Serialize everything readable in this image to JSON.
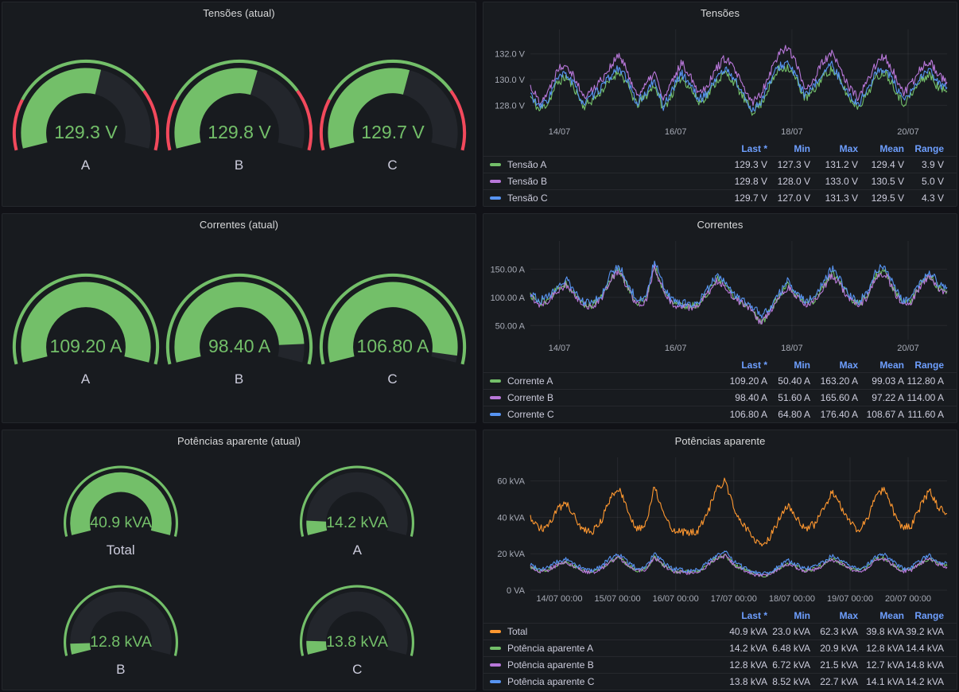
{
  "theme": {
    "page_bg": "#111217",
    "panel_bg": "#181b1f",
    "title_color": "#d8d9da",
    "text": "#ccccdc",
    "axis_text": "#a7abb6",
    "grid": "rgba(204,204,220,0.08)",
    "legend_header": "#6e9fff",
    "green": "#73BF69",
    "red": "#F2495C",
    "purple": "#B877D9",
    "blue": "#5794F2",
    "orange": "#FF9830",
    "gauge_track": "#23262c"
  },
  "panels": {
    "tensoes_atual": {
      "title": "Tensões (atual)",
      "layout": {
        "columns": 3,
        "size": 192,
        "value_font": 24
      },
      "gauges": [
        {
          "label": "A",
          "value": "129.3 V",
          "fill": 0.565,
          "ring": [
            {
              "to": 0.2,
              "color": "#F2495C"
            },
            {
              "to": 0.76,
              "color": "#73BF69"
            },
            {
              "to": 1,
              "color": "#F2495C"
            }
          ]
        },
        {
          "label": "B",
          "value": "129.8 V",
          "fill": 0.578,
          "ring": [
            {
              "to": 0.2,
              "color": "#F2495C"
            },
            {
              "to": 0.76,
              "color": "#73BF69"
            },
            {
              "to": 1,
              "color": "#F2495C"
            }
          ]
        },
        {
          "label": "C",
          "value": "129.7 V",
          "fill": 0.572,
          "ring": [
            {
              "to": 0.2,
              "color": "#F2495C"
            },
            {
              "to": 0.76,
              "color": "#73BF69"
            },
            {
              "to": 1,
              "color": "#F2495C"
            }
          ]
        }
      ]
    },
    "correntes_atual": {
      "title": "Correntes (atual)",
      "layout": {
        "columns": 3,
        "size": 192,
        "value_font": 24
      },
      "gauges": [
        {
          "label": "A",
          "value": "109.20 A",
          "fill": 1.0,
          "ring": [
            {
              "to": 1,
              "color": "#73BF69"
            }
          ]
        },
        {
          "label": "B",
          "value": "98.40 A",
          "fill": 0.92,
          "ring": [
            {
              "to": 1,
              "color": "#73BF69"
            }
          ]
        },
        {
          "label": "C",
          "value": "106.80 A",
          "fill": 0.97,
          "ring": [
            {
              "to": 1,
              "color": "#73BF69"
            }
          ]
        }
      ]
    },
    "potencias_atual": {
      "title": "Potências aparente (atual)",
      "layout": {
        "columns": 2,
        "size": 150,
        "value_font": 26
      },
      "gauges": [
        {
          "label": "Total",
          "value": "40.9 kVA",
          "fill": 1.0,
          "ring": [
            {
              "to": 1,
              "color": "#73BF69"
            }
          ]
        },
        {
          "label": "A",
          "value": "14.2 kVA",
          "fill": 0.08,
          "ring": [
            {
              "to": 1,
              "color": "#73BF69"
            }
          ]
        },
        {
          "label": "B",
          "value": "12.8 kVA",
          "fill": 0.06,
          "ring": [
            {
              "to": 1,
              "color": "#73BF69"
            }
          ]
        },
        {
          "label": "C",
          "value": "13.8 kVA",
          "fill": 0.075,
          "ring": [
            {
              "to": 1,
              "color": "#73BF69"
            }
          ]
        }
      ]
    },
    "tensoes": {
      "title": "Tensões",
      "chart": 0
    },
    "correntes": {
      "title": "Correntes",
      "chart": 1
    },
    "potencias": {
      "title": "Potências aparente",
      "chart": 2
    }
  },
  "chart_data": [
    {
      "type": "line",
      "title": "Tensões",
      "xlabel": "",
      "ylabel": "V",
      "x_range_days": [
        0,
        7.17
      ],
      "x_start": "13/07 ~12:00",
      "grid": true,
      "legend_position": "bottom-table",
      "ylim": [
        126.6,
        133.9
      ],
      "yticks": [
        {
          "v": 128,
          "label": "128.0 V"
        },
        {
          "v": 130,
          "label": "130.0 V"
        },
        {
          "v": 132,
          "label": "132.0 V"
        }
      ],
      "xticks": [
        {
          "x": 0.5,
          "label": "14/07"
        },
        {
          "x": 2.5,
          "label": "16/07"
        },
        {
          "x": 4.5,
          "label": "18/07"
        },
        {
          "x": 6.5,
          "label": "20/07"
        }
      ],
      "series": [
        {
          "name": "Tensão A",
          "color": "#73BF69",
          "noise": 0.35,
          "seed": 11,
          "values": [
            128.7,
            127.6,
            128.2,
            129.7,
            130.2,
            129.3,
            127.9,
            128.4,
            129.1,
            129.9,
            130.7,
            129.5,
            128,
            128.7,
            129.6,
            127.7,
            128.9,
            130.2,
            129.4,
            128.2,
            128.8,
            129.9,
            130.5,
            129.8,
            128.6,
            127.5,
            128.1,
            129.5,
            130.8,
            131,
            130,
            128.5,
            129.1,
            130.3,
            130.8,
            129.8,
            128.5,
            127.9,
            128.9,
            130.2,
            130.6,
            129.5,
            128.1,
            128.8,
            129.9,
            130.4,
            129.4,
            129.1
          ]
        },
        {
          "name": "Tensão B",
          "color": "#B877D9",
          "noise": 0.35,
          "seed": 22,
          "values": [
            129.5,
            128.3,
            129,
            130.8,
            131.3,
            130.2,
            128.6,
            129.2,
            130,
            131,
            131.9,
            130.5,
            128.8,
            129.5,
            130.6,
            128.4,
            129.8,
            131.3,
            130.4,
            129,
            129.6,
            130.9,
            131.7,
            130.8,
            129.4,
            128.2,
            128.9,
            130.5,
            132,
            132.6,
            131.2,
            129.3,
            130,
            131.4,
            132,
            130.8,
            129.3,
            128.6,
            129.8,
            131.3,
            131.8,
            130.5,
            128.9,
            129.6,
            130.9,
            131.5,
            130.4,
            129.8
          ]
        },
        {
          "name": "Tensão C",
          "color": "#5794F2",
          "noise": 0.35,
          "seed": 33,
          "values": [
            128.9,
            127.8,
            128.5,
            130,
            130.5,
            129.5,
            128.1,
            128.7,
            129.4,
            130.2,
            131,
            129.8,
            128.2,
            128.9,
            129.9,
            127.9,
            129.2,
            130.5,
            129.7,
            128.4,
            129,
            130.2,
            130.8,
            130.1,
            128.8,
            127.6,
            128.3,
            129.8,
            131,
            131.3,
            130.2,
            128.7,
            129.4,
            130.6,
            131.1,
            130,
            128.7,
            128.1,
            129.2,
            130.5,
            130.9,
            129.8,
            128.3,
            129,
            130.2,
            130.7,
            129.7,
            129.4
          ]
        }
      ],
      "legend": {
        "columns": [
          "Last *",
          "Min",
          "Max",
          "Mean",
          "Range"
        ],
        "rows": [
          {
            "name": "Tensão A",
            "color": "#73BF69",
            "values": [
              "129.3 V",
              "127.3 V",
              "131.2 V",
              "129.4 V",
              "3.9 V"
            ]
          },
          {
            "name": "Tensão B",
            "color": "#B877D9",
            "values": [
              "129.8 V",
              "128.0 V",
              "133.0 V",
              "130.5 V",
              "5.0 V"
            ]
          },
          {
            "name": "Tensão C",
            "color": "#5794F2",
            "values": [
              "129.7 V",
              "127.0 V",
              "131.3 V",
              "129.5 V",
              "4.3 V"
            ]
          }
        ]
      }
    },
    {
      "type": "line",
      "title": "Correntes",
      "xlabel": "",
      "ylabel": "A",
      "x_range_days": [
        0,
        7.17
      ],
      "x_start": "13/07 ~12:00",
      "grid": true,
      "legend_position": "bottom-table",
      "ylim": [
        25,
        200
      ],
      "yticks": [
        {
          "v": 50,
          "label": "50.00 A"
        },
        {
          "v": 100,
          "label": "100.00 A"
        },
        {
          "v": 150,
          "label": "150.00 A"
        }
      ],
      "xticks": [
        {
          "x": 0.5,
          "label": "14/07"
        },
        {
          "x": 2.5,
          "label": "16/07"
        },
        {
          "x": 4.5,
          "label": "18/07"
        },
        {
          "x": 6.5,
          "label": "20/07"
        }
      ],
      "series": [
        {
          "name": "Corrente A",
          "color": "#73BF69",
          "noise": 6.5,
          "seed": 44,
          "values": [
            104,
            90,
            96,
            114,
            125,
            104,
            88,
            86,
            100,
            132,
            150,
            118,
            90,
            95,
            155,
            113,
            90,
            86,
            84,
            88,
            109,
            133,
            123,
            100,
            90,
            80,
            52,
            76,
            100,
            121,
            104,
            90,
            95,
            118,
            144,
            123,
            99,
            87,
            104,
            140,
            147,
            113,
            90,
            95,
            123,
            140,
            118,
            112
          ]
        },
        {
          "name": "Corrente B",
          "color": "#B877D9",
          "noise": 6.5,
          "seed": 55,
          "values": [
            102,
            88,
            94,
            112,
            122,
            102,
            86,
            84,
            98,
            129,
            147,
            115,
            88,
            93,
            152,
            110,
            88,
            84,
            82,
            86,
            106,
            130,
            120,
            98,
            88,
            78,
            54,
            74,
            97,
            118,
            101,
            88,
            92,
            115,
            141,
            120,
            97,
            85,
            101,
            137,
            144,
            110,
            88,
            92,
            120,
            137,
            115,
            109
          ]
        },
        {
          "name": "Corrente C",
          "color": "#5794F2",
          "noise": 7,
          "seed": 66,
          "values": [
            110,
            95,
            100,
            120,
            132,
            110,
            92,
            90,
            105,
            140,
            158,
            125,
            95,
            100,
            165,
            120,
            95,
            90,
            88,
            92,
            115,
            140,
            130,
            105,
            95,
            85,
            68,
            80,
            105,
            128,
            110,
            95,
            100,
            125,
            152,
            130,
            105,
            92,
            110,
            148,
            155,
            120,
            95,
            100,
            130,
            148,
            125,
            118
          ]
        }
      ],
      "legend": {
        "columns": [
          "Last *",
          "Min",
          "Max",
          "Mean",
          "Range"
        ],
        "rows": [
          {
            "name": "Corrente A",
            "color": "#73BF69",
            "values": [
              "109.20 A",
              "50.40 A",
              "163.20 A",
              "99.03 A",
              "112.80 A"
            ]
          },
          {
            "name": "Corrente B",
            "color": "#B877D9",
            "values": [
              "98.40 A",
              "51.60 A",
              "165.60 A",
              "97.22 A",
              "114.00 A"
            ]
          },
          {
            "name": "Corrente C",
            "color": "#5794F2",
            "values": [
              "106.80 A",
              "64.80 A",
              "176.40 A",
              "108.67 A",
              "111.60 A"
            ]
          }
        ]
      }
    },
    {
      "type": "line",
      "title": "Potências aparente",
      "xlabel": "",
      "ylabel": "kVA",
      "x_range_days": [
        0,
        7.17
      ],
      "x_start": "13/07 ~12:00",
      "grid": true,
      "legend_position": "bottom-table",
      "ylim": [
        0,
        72.9
      ],
      "yticks": [
        {
          "v": 0,
          "label": "0 VA"
        },
        {
          "v": 20,
          "label": "20 kVA"
        },
        {
          "v": 40,
          "label": "40 kVA"
        },
        {
          "v": 60,
          "label": "60 kVA"
        }
      ],
      "xticks": [
        {
          "x": 0.5,
          "label": "14/07 00:00"
        },
        {
          "x": 1.5,
          "label": "15/07 00:00"
        },
        {
          "x": 2.5,
          "label": "16/07 00:00"
        },
        {
          "x": 3.5,
          "label": "17/07 00:00"
        },
        {
          "x": 4.5,
          "label": "18/07 00:00"
        },
        {
          "x": 5.5,
          "label": "19/07 00:00"
        },
        {
          "x": 6.5,
          "label": "20/07 00:00"
        }
      ],
      "series": [
        {
          "name": "Potência aparente A",
          "color": "#73BF69",
          "noise": 1.1,
          "seed": 77,
          "values": [
            13,
            10.5,
            11.5,
            14,
            15.5,
            13,
            10.5,
            10,
            12,
            16,
            18,
            14,
            10.8,
            11.5,
            18.3,
            13.8,
            10.8,
            10,
            9.8,
            10.5,
            13.8,
            17.6,
            19.2,
            14,
            11.5,
            9.5,
            7.5,
            9,
            12,
            14.8,
            12.8,
            10.8,
            11.5,
            14,
            17.3,
            14.8,
            12,
            10.5,
            12.5,
            17,
            17.6,
            13.8,
            10.8,
            11.5,
            14.8,
            17.6,
            14.4,
            13.4
          ]
        },
        {
          "name": "Potência aparente B",
          "color": "#B877D9",
          "noise": 1.1,
          "seed": 88,
          "values": [
            12.8,
            10.2,
            11.2,
            13.8,
            15.2,
            12.8,
            10.2,
            9.8,
            11.8,
            15.8,
            17.8,
            13.8,
            10.5,
            11.2,
            18,
            13.5,
            10.5,
            9.8,
            9.5,
            10.2,
            13.5,
            17.2,
            18.8,
            13.8,
            11.2,
            9.2,
            7.8,
            8.8,
            11.8,
            14.5,
            12.5,
            10.5,
            11.2,
            13.8,
            17,
            14.5,
            11.8,
            10.2,
            12.2,
            16.6,
            17.2,
            13.5,
            10.5,
            11.2,
            14.5,
            17.2,
            14.1,
            12.8
          ]
        },
        {
          "name": "Potência aparente C",
          "color": "#5794F2",
          "noise": 1.2,
          "seed": 99,
          "values": [
            14.3,
            11.6,
            12.7,
            15.4,
            17,
            14.3,
            11.6,
            11,
            13.2,
            17.6,
            19.8,
            15.4,
            11.9,
            12.7,
            20.1,
            15.2,
            11.9,
            11,
            10.8,
            11.6,
            15.2,
            19.4,
            21.1,
            15.4,
            12.7,
            10.5,
            9.3,
            9.9,
            13.2,
            16.3,
            14.1,
            11.9,
            12.7,
            15.4,
            19,
            16.3,
            13.2,
            11.6,
            13.8,
            18.7,
            19.4,
            15.2,
            11.9,
            12.7,
            16.3,
            19.4,
            15.8,
            14.7
          ]
        },
        {
          "name": "Total",
          "color": "#FF9830",
          "noise": 2.2,
          "seed": 123,
          "values": [
            40,
            33,
            36,
            44,
            48,
            40,
            33,
            32,
            38,
            50,
            56,
            44,
            34,
            36,
            57,
            43,
            34,
            32,
            31,
            33,
            43,
            55,
            60,
            44,
            36,
            30,
            24,
            29,
            38,
            46,
            40,
            34,
            36,
            44,
            54,
            46,
            38,
            33,
            39,
            53,
            55,
            43,
            34,
            36,
            46,
            55,
            45,
            42
          ]
        }
      ],
      "legend": {
        "columns": [
          "Last *",
          "Min",
          "Max",
          "Mean",
          "Range"
        ],
        "rows": [
          {
            "name": "Total",
            "color": "#FF9830",
            "values": [
              "40.9 kVA",
              "23.0 kVA",
              "62.3 kVA",
              "39.8 kVA",
              "39.2 kVA"
            ]
          },
          {
            "name": "Potência aparente A",
            "color": "#73BF69",
            "values": [
              "14.2 kVA",
              "6.48 kVA",
              "20.9 kVA",
              "12.8 kVA",
              "14.4 kVA"
            ]
          },
          {
            "name": "Potência aparente B",
            "color": "#B877D9",
            "values": [
              "12.8 kVA",
              "6.72 kVA",
              "21.5 kVA",
              "12.7 kVA",
              "14.8 kVA"
            ]
          },
          {
            "name": "Potência aparente C",
            "color": "#5794F2",
            "values": [
              "13.8 kVA",
              "8.52 kVA",
              "22.7 kVA",
              "14.1 kVA",
              "14.2 kVA"
            ]
          }
        ]
      }
    }
  ]
}
